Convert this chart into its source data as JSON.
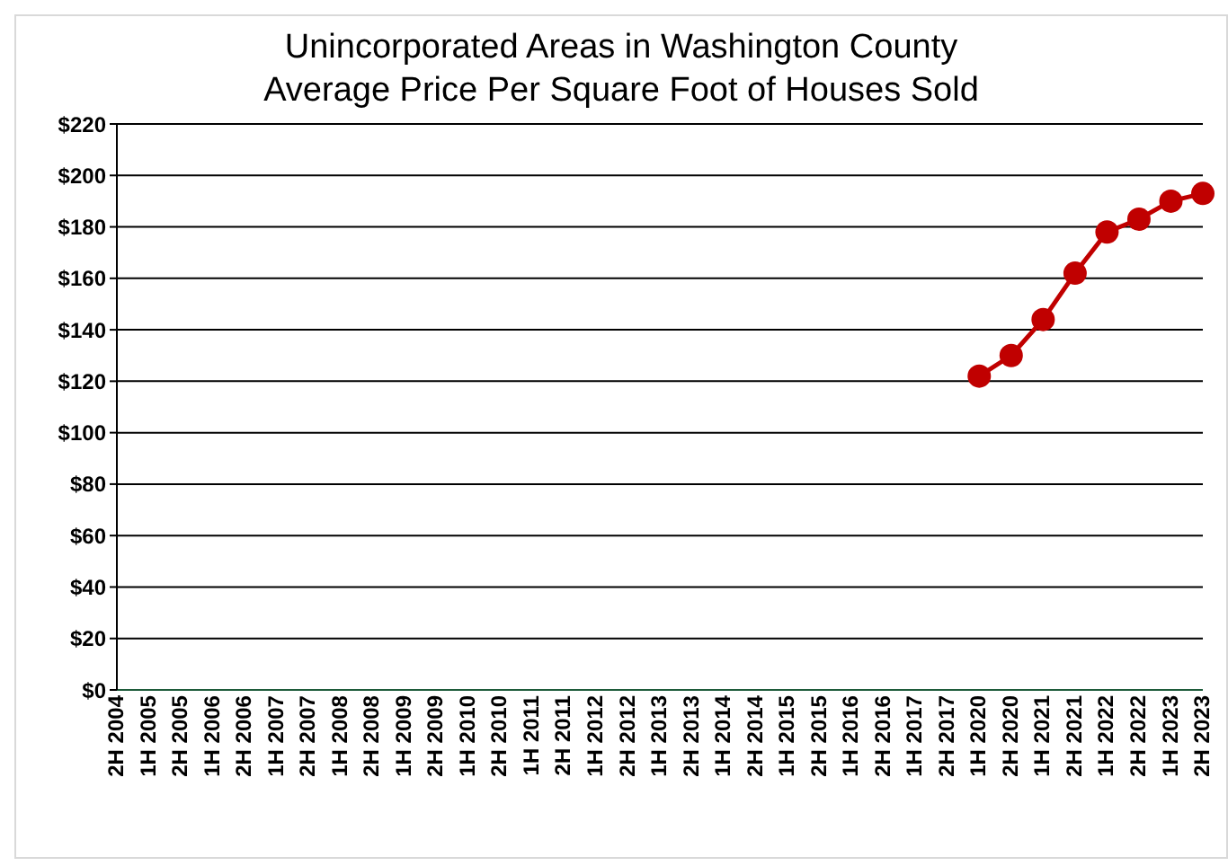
{
  "chart_data": {
    "type": "line",
    "title": "Unincorporated Areas in Washington County",
    "subtitle": "Average Price Per Square Foot of Houses Sold",
    "categories": [
      "2H 2004",
      "1H 2005",
      "2H 2005",
      "1H 2006",
      "2H 2006",
      "1H 2007",
      "2H 2007",
      "1H 2008",
      "2H 2008",
      "1H 2009",
      "2H 2009",
      "1H 2010",
      "2H 2010",
      "1H 2011",
      "2H 2011",
      "1H 2012",
      "2H 2012",
      "1H 2013",
      "2H 2013",
      "1H 2014",
      "2H 2014",
      "1H 2015",
      "2H 2015",
      "1H 2016",
      "2H 2016",
      "1H 2017",
      "2H 2017",
      "1H 2020",
      "2H 2020",
      "1H 2021",
      "2H 2021",
      "1H 2022",
      "2H 2022",
      "1H 2023",
      "2H 2023"
    ],
    "series": [
      {
        "color": "#c00000",
        "values": [
          null,
          null,
          null,
          null,
          null,
          null,
          null,
          null,
          null,
          null,
          null,
          null,
          null,
          null,
          null,
          null,
          null,
          null,
          null,
          null,
          null,
          null,
          null,
          null,
          null,
          null,
          null,
          122,
          130,
          144,
          162,
          178,
          183,
          190,
          193
        ]
      }
    ],
    "ylim": [
      0,
      220
    ],
    "yticks": [
      {
        "value": 0,
        "label": "$0"
      },
      {
        "value": 20,
        "label": "$20"
      },
      {
        "value": 40,
        "label": "$40"
      },
      {
        "value": 60,
        "label": "$60"
      },
      {
        "value": 80,
        "label": "$80"
      },
      {
        "value": 100,
        "label": "$100"
      },
      {
        "value": 120,
        "label": "$120"
      },
      {
        "value": 140,
        "label": "$140"
      },
      {
        "value": 160,
        "label": "$160"
      },
      {
        "value": 180,
        "label": "$180"
      },
      {
        "value": 200,
        "label": "$200"
      },
      {
        "value": 220,
        "label": "$220"
      }
    ],
    "grid": "y",
    "marker": "circle",
    "line_style": "solid"
  }
}
